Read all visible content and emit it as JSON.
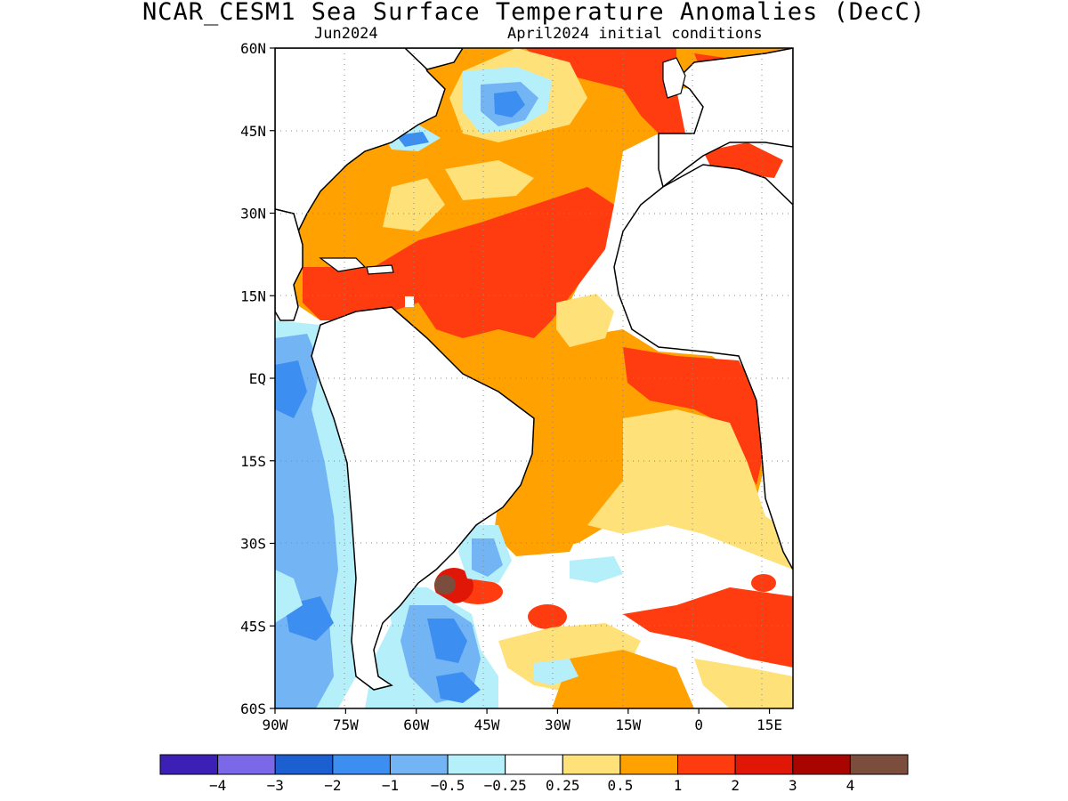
{
  "title": "NCAR_CESM1 Sea Surface Temperature Anomalies (DecC)",
  "subtitle_left": "Jun2024",
  "subtitle_right": "April2024 initial conditions",
  "axes": {
    "x_ticks": [
      "90W",
      "75W",
      "60W",
      "45W",
      "30W",
      "15W",
      "0",
      "15E"
    ],
    "y_ticks": [
      "60N",
      "45N",
      "30N",
      "15N",
      "EQ",
      "15S",
      "30S",
      "45S",
      "60S"
    ],
    "grid": "dotted"
  },
  "colorbar": {
    "colors": [
      "#3c1fb5",
      "#7b68e8",
      "#1c5fd1",
      "#3c8ef0",
      "#73b4f5",
      "#b4effa",
      "#ffffff",
      "#ffe17a",
      "#ffa100",
      "#ff3c0f",
      "#e01707",
      "#a80400",
      "#7b4d3d"
    ],
    "labels": [
      "−4",
      "−3",
      "−2",
      "−1",
      "−0.5",
      "−0.25",
      "0.25",
      "0.5",
      "1",
      "2",
      "3",
      "4"
    ]
  },
  "chart_data": {
    "type": "heatmap",
    "variable": "Sea Surface Temperature Anomalies (DecC)",
    "model": "NCAR_CESM1",
    "valid_month": "Jun2024",
    "initial_conditions": "April2024",
    "xlim": [
      -90,
      20
    ],
    "ylim": [
      -60,
      60
    ],
    "contour_levels": [
      -4,
      -3,
      -2,
      -1,
      -0.5,
      -0.25,
      0.25,
      0.5,
      1,
      2,
      3,
      4
    ]
  }
}
